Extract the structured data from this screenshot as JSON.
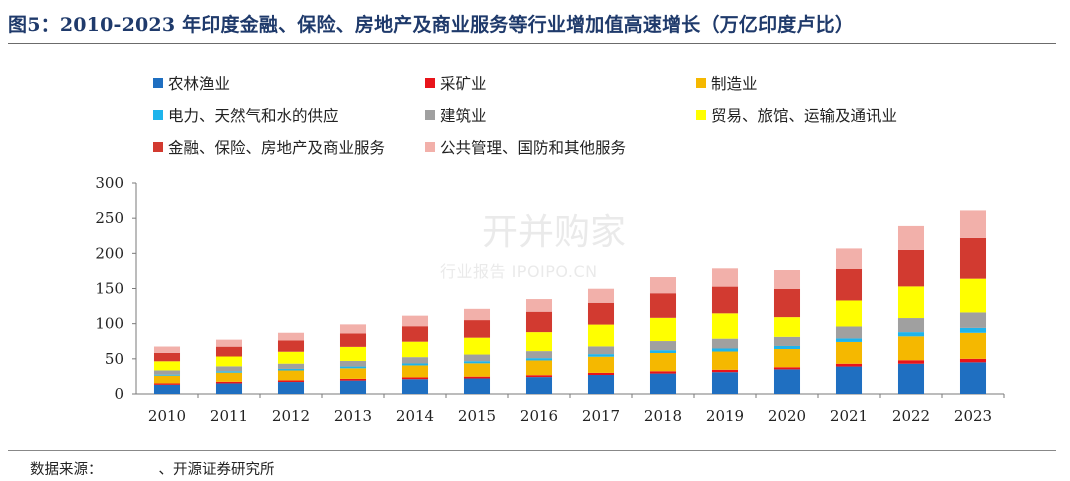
{
  "title": "图5：2010-2023 年印度金融、保险、房地产及商业服务等行业增加值高速增长（万亿印度卢比）",
  "source": {
    "label": "数据来源：",
    "text": "、开源证券研究所"
  },
  "watermark": {
    "main": "开并购家",
    "sub": "行业报告 IPOIPO.CN"
  },
  "chart_data": {
    "type": "bar",
    "stacked": true,
    "categories": [
      "2010",
      "2011",
      "2012",
      "2013",
      "2014",
      "2015",
      "2016",
      "2017",
      "2018",
      "2019",
      "2020",
      "2021",
      "2022",
      "2023"
    ],
    "ylim": [
      0,
      300
    ],
    "yticks": [
      0,
      50,
      100,
      150,
      200,
      250,
      300
    ],
    "grid": false,
    "legend_position": "top",
    "series": [
      {
        "name": "农林渔业",
        "color": "#1f6fc1",
        "values": [
          13,
          15,
          17,
          19,
          21,
          22,
          24,
          27,
          29,
          31,
          35,
          39,
          43,
          45
        ]
      },
      {
        "name": "采矿业",
        "color": "#e8141a",
        "values": [
          2,
          2.3,
          2.4,
          2.5,
          2.6,
          2.6,
          2.7,
          3,
          3.3,
          3.4,
          3,
          4,
          5,
          5
        ]
      },
      {
        "name": "制造业",
        "color": "#f5b800",
        "values": [
          11,
          13,
          14,
          15,
          17,
          19,
          21,
          23,
          26,
          26,
          26,
          31,
          34,
          37
        ]
      },
      {
        "name": "电力、天然气和水的供应",
        "color": "#1eb4ec",
        "values": [
          1.5,
          2,
          2.2,
          2.5,
          2.8,
          3,
          3.3,
          3.7,
          4,
          4.3,
          4.3,
          5,
          6,
          7
        ]
      },
      {
        "name": "建筑业",
        "color": "#a0a0a0",
        "values": [
          6,
          7,
          7.5,
          8,
          9,
          9.5,
          10,
          11,
          13,
          14,
          13,
          17,
          20,
          22
        ]
      },
      {
        "name": "贸易、旅馆、运输及通讯业",
        "color": "#ffff00",
        "values": [
          13,
          14,
          17,
          20,
          22,
          24,
          27,
          31,
          33,
          36,
          28,
          37,
          45,
          48
        ]
      },
      {
        "name": "金融、保险、房地产及商业服务",
        "color": "#d23a30",
        "values": [
          12,
          14,
          16,
          19,
          22,
          25,
          29,
          31,
          35,
          38,
          40,
          45,
          52,
          58
        ]
      },
      {
        "name": "公共管理、国防和其他服务",
        "color": "#f2b0aa",
        "values": [
          9,
          10,
          11,
          13,
          15,
          16,
          18,
          20,
          23,
          26,
          27,
          29,
          34,
          39
        ]
      }
    ]
  }
}
